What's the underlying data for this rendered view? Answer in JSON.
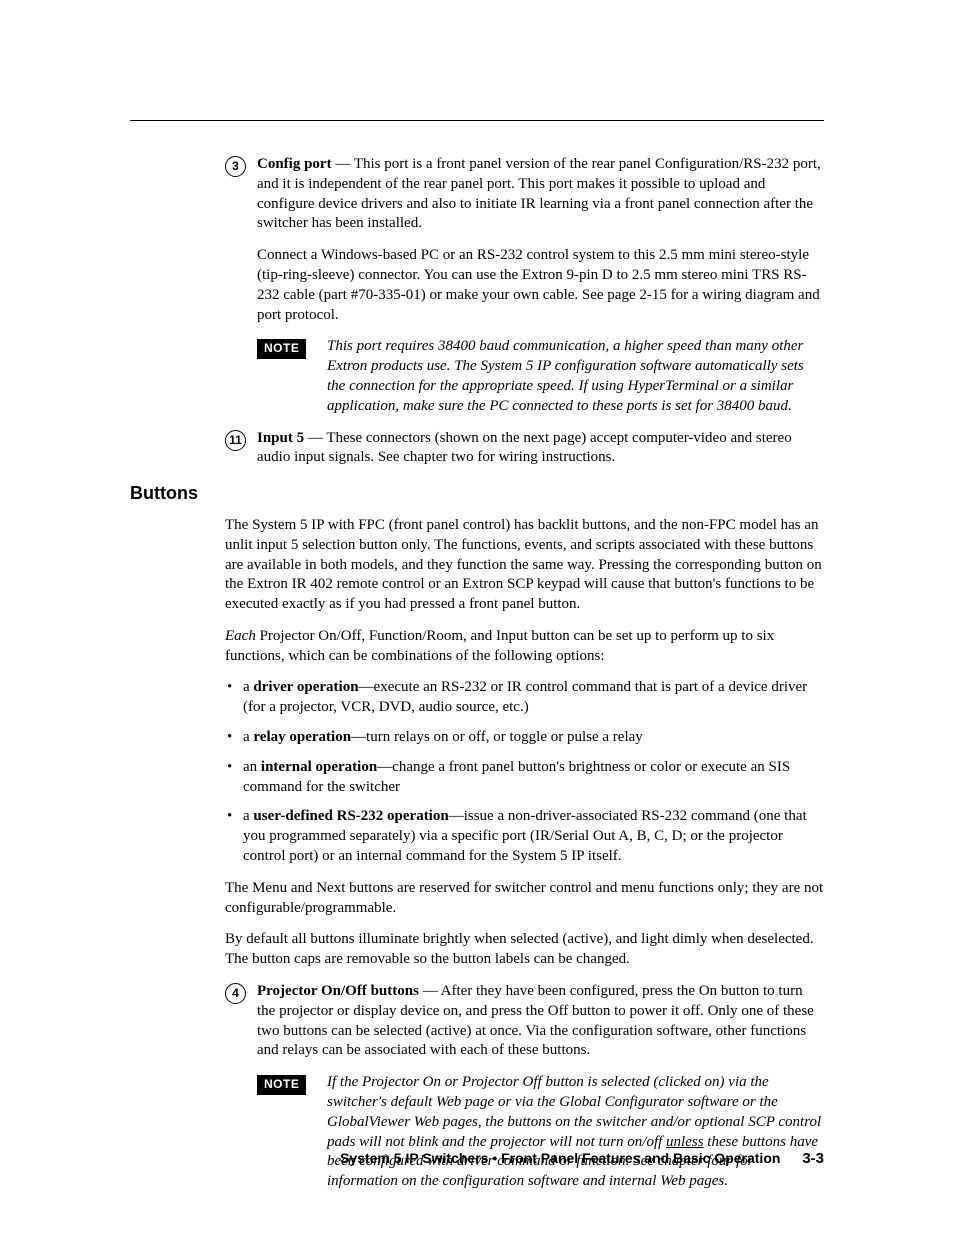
{
  "items": {
    "configPort": {
      "num": "3",
      "lead": "Config port",
      "body1_rest": " — This port is a front panel version of the rear panel Configuration/RS-232 port, and it is independent of the rear panel port.  This port makes it possible to upload and configure device drivers and also to initiate IR learning via a front panel connection after the switcher has been installed.",
      "body2": "Connect a Windows-based PC or an RS-232 control system to this 2.5 mm mini stereo-style (tip-ring-sleeve) connector.  You can use the Extron 9-pin D to 2.5 mm stereo mini TRS RS-232 cable (part #70-335-01) or make your own cable.  See page 2-15 for a wiring diagram and port protocol."
    },
    "note1": {
      "badge": "NOTE",
      "text": "This port requires 38400 baud communication, a higher speed than many other Extron products use.  The System 5 IP configuration software automatically sets the connection for the appropriate speed.  If using HyperTerminal or a similar application, make sure the PC connected to these ports is set for 38400 baud."
    },
    "input5": {
      "num": "11",
      "lead": "Input 5",
      "rest": " — These connectors (shown on the next page) accept computer-video and stereo audio input signals.  See chapter two for wiring instructions."
    }
  },
  "buttons": {
    "heading": "Buttons",
    "p1": "The System 5 IP with FPC (front panel control) has backlit buttons, and the non-FPC model has an unlit input 5 selection button only.  The functions, events, and scripts associated with these buttons are available in both models, and they function the same way.  Pressing the corresponding button on the Extron IR 402 remote control or an Extron SCP keypad will cause that button's functions to be executed exactly as if you had pressed a front panel button.",
    "p2_lead_italic": "Each",
    "p2_rest": " Projector On/Off, Function/Room, and Input button can be set up to perform up to six functions, which can be combinations of the following options:",
    "bullets": [
      {
        "pre": "a ",
        "bold": "driver operation",
        "post": "—execute an RS-232 or IR control command that is part of a device driver (for a projector, VCR, DVD, audio source, etc.)"
      },
      {
        "pre": "a ",
        "bold": "relay operation",
        "post": "—turn relays on or off, or toggle or pulse a relay"
      },
      {
        "pre": "an ",
        "bold": "internal operation",
        "post": "—change a front panel button's brightness or color or execute an SIS command for the switcher"
      },
      {
        "pre": "a ",
        "bold": "user-defined RS-232 operation",
        "post": "—issue a non-driver-associated RS-232 command (one that you programmed separately) via a specific port (IR/Serial Out A, B, C, D; or the projector control port) or an internal command for the System 5 IP itself."
      }
    ],
    "p3": "The Menu and Next buttons are reserved for switcher control and menu functions only; they are not configurable/programmable.",
    "p4": "By default all buttons illuminate brightly when selected (active), and light dimly when deselected.  The button caps are removable so the button labels can be changed.",
    "projector": {
      "num": "4",
      "lead": "Projector On/Off buttons",
      "rest": " — After they have been configured, press the On button to turn the projector or display device on, and press the Off button to power it off.  Only one of these two buttons can be selected (active) at once.  Via the configuration software, other functions and relays can be associated with each of these buttons."
    },
    "note2": {
      "badge": "NOTE",
      "pre": "If the Projector On or Projector Off button is selected (clicked on) via the switcher's default Web page or via the Global Configurator software or the GlobalViewer Web pages, the buttons on the switcher and/or optional SCP control pads will not blink and the projector will not turn on/off ",
      "underline": "unless",
      "post": " these buttons have been configured with driver command or function.  See chapter four for information on the configuration software and internal Web pages."
    }
  },
  "footer": {
    "title": "System 5 IP Switchers • Front Panel Features and Basic Operation",
    "page": "3-3"
  },
  "colors": {
    "text": "#000000",
    "background": "#ffffff",
    "noteBadgeBg": "#000000",
    "noteBadgeFg": "#ffffff"
  },
  "typography": {
    "body_family": "Palatino/Georgia serif",
    "body_size_pt": 11,
    "heading_family": "Trebuchet/Stone Sans",
    "heading_size_pt": 13.5,
    "note_badge_family": "Arial/Helvetica bold"
  }
}
